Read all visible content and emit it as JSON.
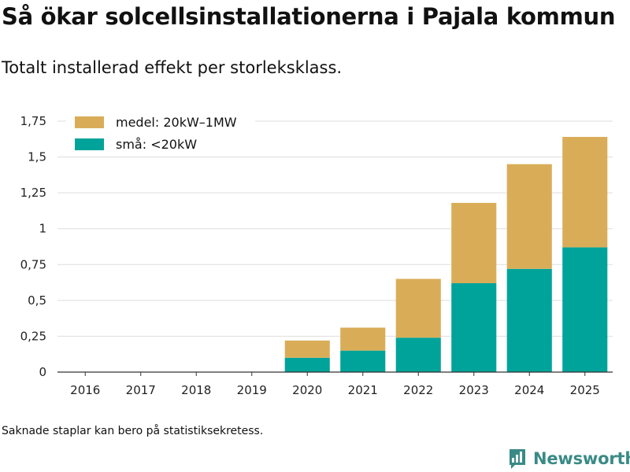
{
  "header": {
    "title": "Så ökar solcellsinstallationerna i Pajala kommun",
    "subtitle": "Totalt installerad effekt per storleksklass."
  },
  "footer": {
    "note": "Saknade staplar kan bero på statistiksekretess.",
    "brand": "Newsworthy"
  },
  "colors": {
    "small": "#00a39a",
    "medium": "#d9ad58",
    "grid": "#dddddd",
    "axis": "#333333",
    "brand": "#3a8a86"
  },
  "chart_data": {
    "type": "bar",
    "stacked": true,
    "title": "Så ökar solcellsinstallationerna i Pajala kommun",
    "subtitle": "Totalt installerad effekt per storleksklass.",
    "xlabel": "",
    "ylabel": "",
    "categories": [
      "2016",
      "2017",
      "2018",
      "2019",
      "2020",
      "2021",
      "2022",
      "2023",
      "2024",
      "2025"
    ],
    "series": [
      {
        "name": "små: <20kW",
        "values": [
          null,
          null,
          null,
          null,
          0.1,
          0.15,
          0.24,
          0.62,
          0.72,
          0.87
        ]
      },
      {
        "name": "medel: 20kW–1MW",
        "values": [
          null,
          null,
          null,
          null,
          0.12,
          0.16,
          0.41,
          0.56,
          0.73,
          0.77
        ]
      }
    ],
    "legend_order": [
      "medel: 20kW–1MW",
      "små: <20kW"
    ],
    "legend_position": "top-left",
    "ylim": [
      0,
      1.75
    ],
    "yticks": [
      0,
      0.25,
      0.5,
      0.75,
      1,
      1.25,
      1.5,
      1.75
    ],
    "ytick_labels": [
      "0",
      "0,25",
      "0,5",
      "0,75",
      "1",
      "1,25",
      "1,5",
      "1,75"
    ],
    "grid": true
  }
}
